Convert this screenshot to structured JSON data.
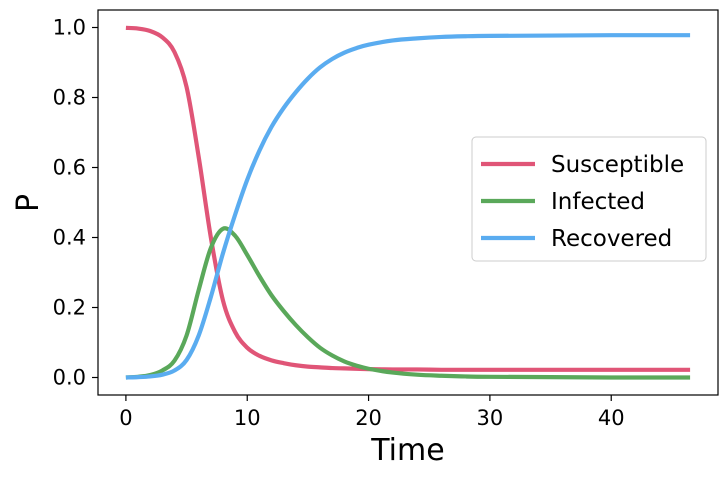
{
  "chart_data": {
    "type": "line",
    "title": "",
    "xlabel": "Time",
    "ylabel": "P",
    "xlim": [
      -2.3,
      48.8
    ],
    "ylim": [
      -0.05,
      1.05
    ],
    "xticks": [
      0,
      10,
      20,
      30,
      40
    ],
    "yticks": [
      0.0,
      0.2,
      0.4,
      0.6,
      0.8,
      1.0
    ],
    "xtick_labels": [
      "0",
      "10",
      "20",
      "30",
      "40"
    ],
    "ytick_labels": [
      "0.0",
      "0.2",
      "0.4",
      "0.6",
      "0.8",
      "1.0"
    ],
    "grid": false,
    "legend_position": "center-right",
    "x": [
      0,
      1,
      2,
      3,
      4,
      5,
      6,
      7,
      8,
      9,
      10,
      11,
      12,
      13,
      14,
      15,
      16,
      17,
      18,
      19,
      20,
      22,
      24,
      26,
      28,
      30,
      35,
      40,
      46.5
    ],
    "series": [
      {
        "name": "Susceptible",
        "color": "#e05577",
        "values": [
          0.999,
          0.997,
          0.99,
          0.972,
          0.93,
          0.83,
          0.63,
          0.4,
          0.22,
          0.13,
          0.085,
          0.062,
          0.049,
          0.041,
          0.035,
          0.031,
          0.029,
          0.027,
          0.026,
          0.025,
          0.024,
          0.023,
          0.023,
          0.022,
          0.022,
          0.022,
          0.022,
          0.022,
          0.022
        ]
      },
      {
        "name": "Infected",
        "color": "#5aa85a",
        "values": [
          0.0,
          0.002,
          0.007,
          0.02,
          0.048,
          0.12,
          0.25,
          0.37,
          0.425,
          0.405,
          0.35,
          0.29,
          0.235,
          0.19,
          0.15,
          0.115,
          0.085,
          0.063,
          0.046,
          0.034,
          0.025,
          0.014,
          0.008,
          0.005,
          0.003,
          0.002,
          0.001,
          0.0,
          0.0
        ]
      },
      {
        "name": "Recovered",
        "color": "#5aacf0",
        "values": [
          0.0,
          0.001,
          0.003,
          0.008,
          0.02,
          0.05,
          0.12,
          0.23,
          0.355,
          0.465,
          0.565,
          0.648,
          0.716,
          0.77,
          0.815,
          0.854,
          0.886,
          0.91,
          0.928,
          0.941,
          0.951,
          0.963,
          0.969,
          0.973,
          0.975,
          0.976,
          0.977,
          0.978,
          0.978
        ]
      }
    ]
  }
}
